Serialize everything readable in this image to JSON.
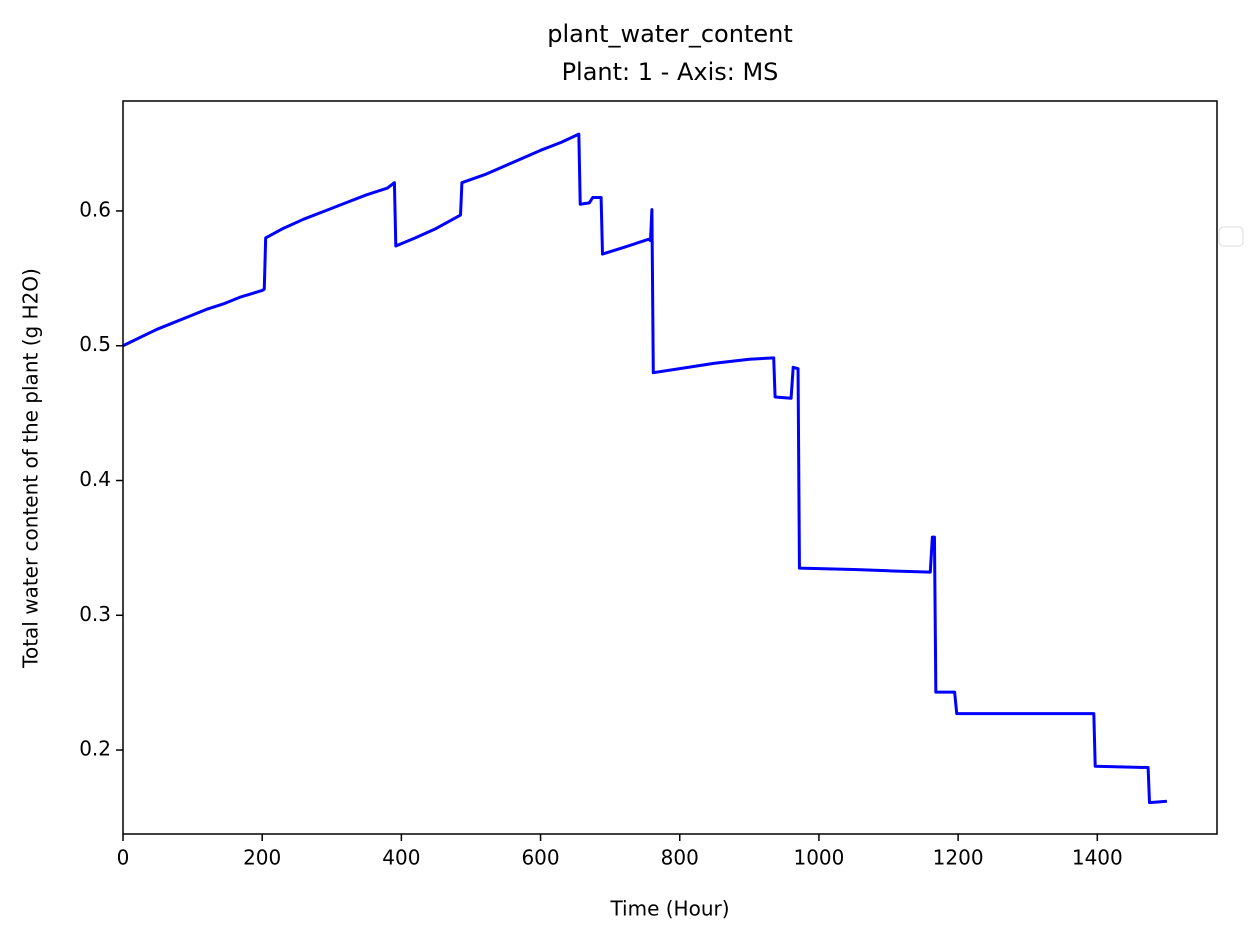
{
  "chart_data": {
    "type": "line",
    "title": "plant_water_content",
    "subtitle": "Plant: 1 - Axis: MS",
    "x_label": "Time (Hour)",
    "y_label": "Total water content of the plant (g H2O)",
    "x": [
      0,
      24,
      48,
      72,
      96,
      120,
      144,
      168,
      200,
      203,
      205,
      230,
      260,
      290,
      320,
      350,
      380,
      390,
      392,
      420,
      450,
      485,
      487,
      520,
      560,
      600,
      630,
      655,
      657,
      670,
      675,
      687,
      689,
      720,
      755,
      758,
      760,
      762,
      800,
      850,
      900,
      935,
      937,
      960,
      963,
      970,
      972,
      1050,
      1100,
      1160,
      1163,
      1166,
      1168,
      1195,
      1198,
      1300,
      1395,
      1397,
      1473,
      1475,
      1500
    ],
    "series": [
      {
        "name": "plant_water_content",
        "color": "#0000ff",
        "values": [
          0.5,
          0.506,
          0.512,
          0.517,
          0.522,
          0.527,
          0.531,
          0.536,
          0.541,
          0.542,
          0.58,
          0.587,
          0.594,
          0.6,
          0.606,
          0.612,
          0.617,
          0.621,
          0.574,
          0.58,
          0.587,
          0.597,
          0.621,
          0.627,
          0.636,
          0.645,
          0.651,
          0.657,
          0.605,
          0.606,
          0.61,
          0.61,
          0.568,
          0.573,
          0.579,
          0.578,
          0.601,
          0.48,
          0.483,
          0.487,
          0.49,
          0.491,
          0.462,
          0.461,
          0.484,
          0.483,
          0.335,
          0.334,
          0.333,
          0.332,
          0.358,
          0.358,
          0.243,
          0.243,
          0.227,
          0.227,
          0.227,
          0.188,
          0.187,
          0.161,
          0.162
        ]
      }
    ],
    "xlim": [
      0,
      1572
    ],
    "ylim": [
      0.1377,
      0.6816
    ],
    "xticks": [
      0,
      200,
      400,
      600,
      800,
      1000,
      1200,
      1400
    ],
    "yticks": [
      0.2,
      0.3,
      0.4,
      0.5,
      0.6
    ],
    "grid": false
  }
}
